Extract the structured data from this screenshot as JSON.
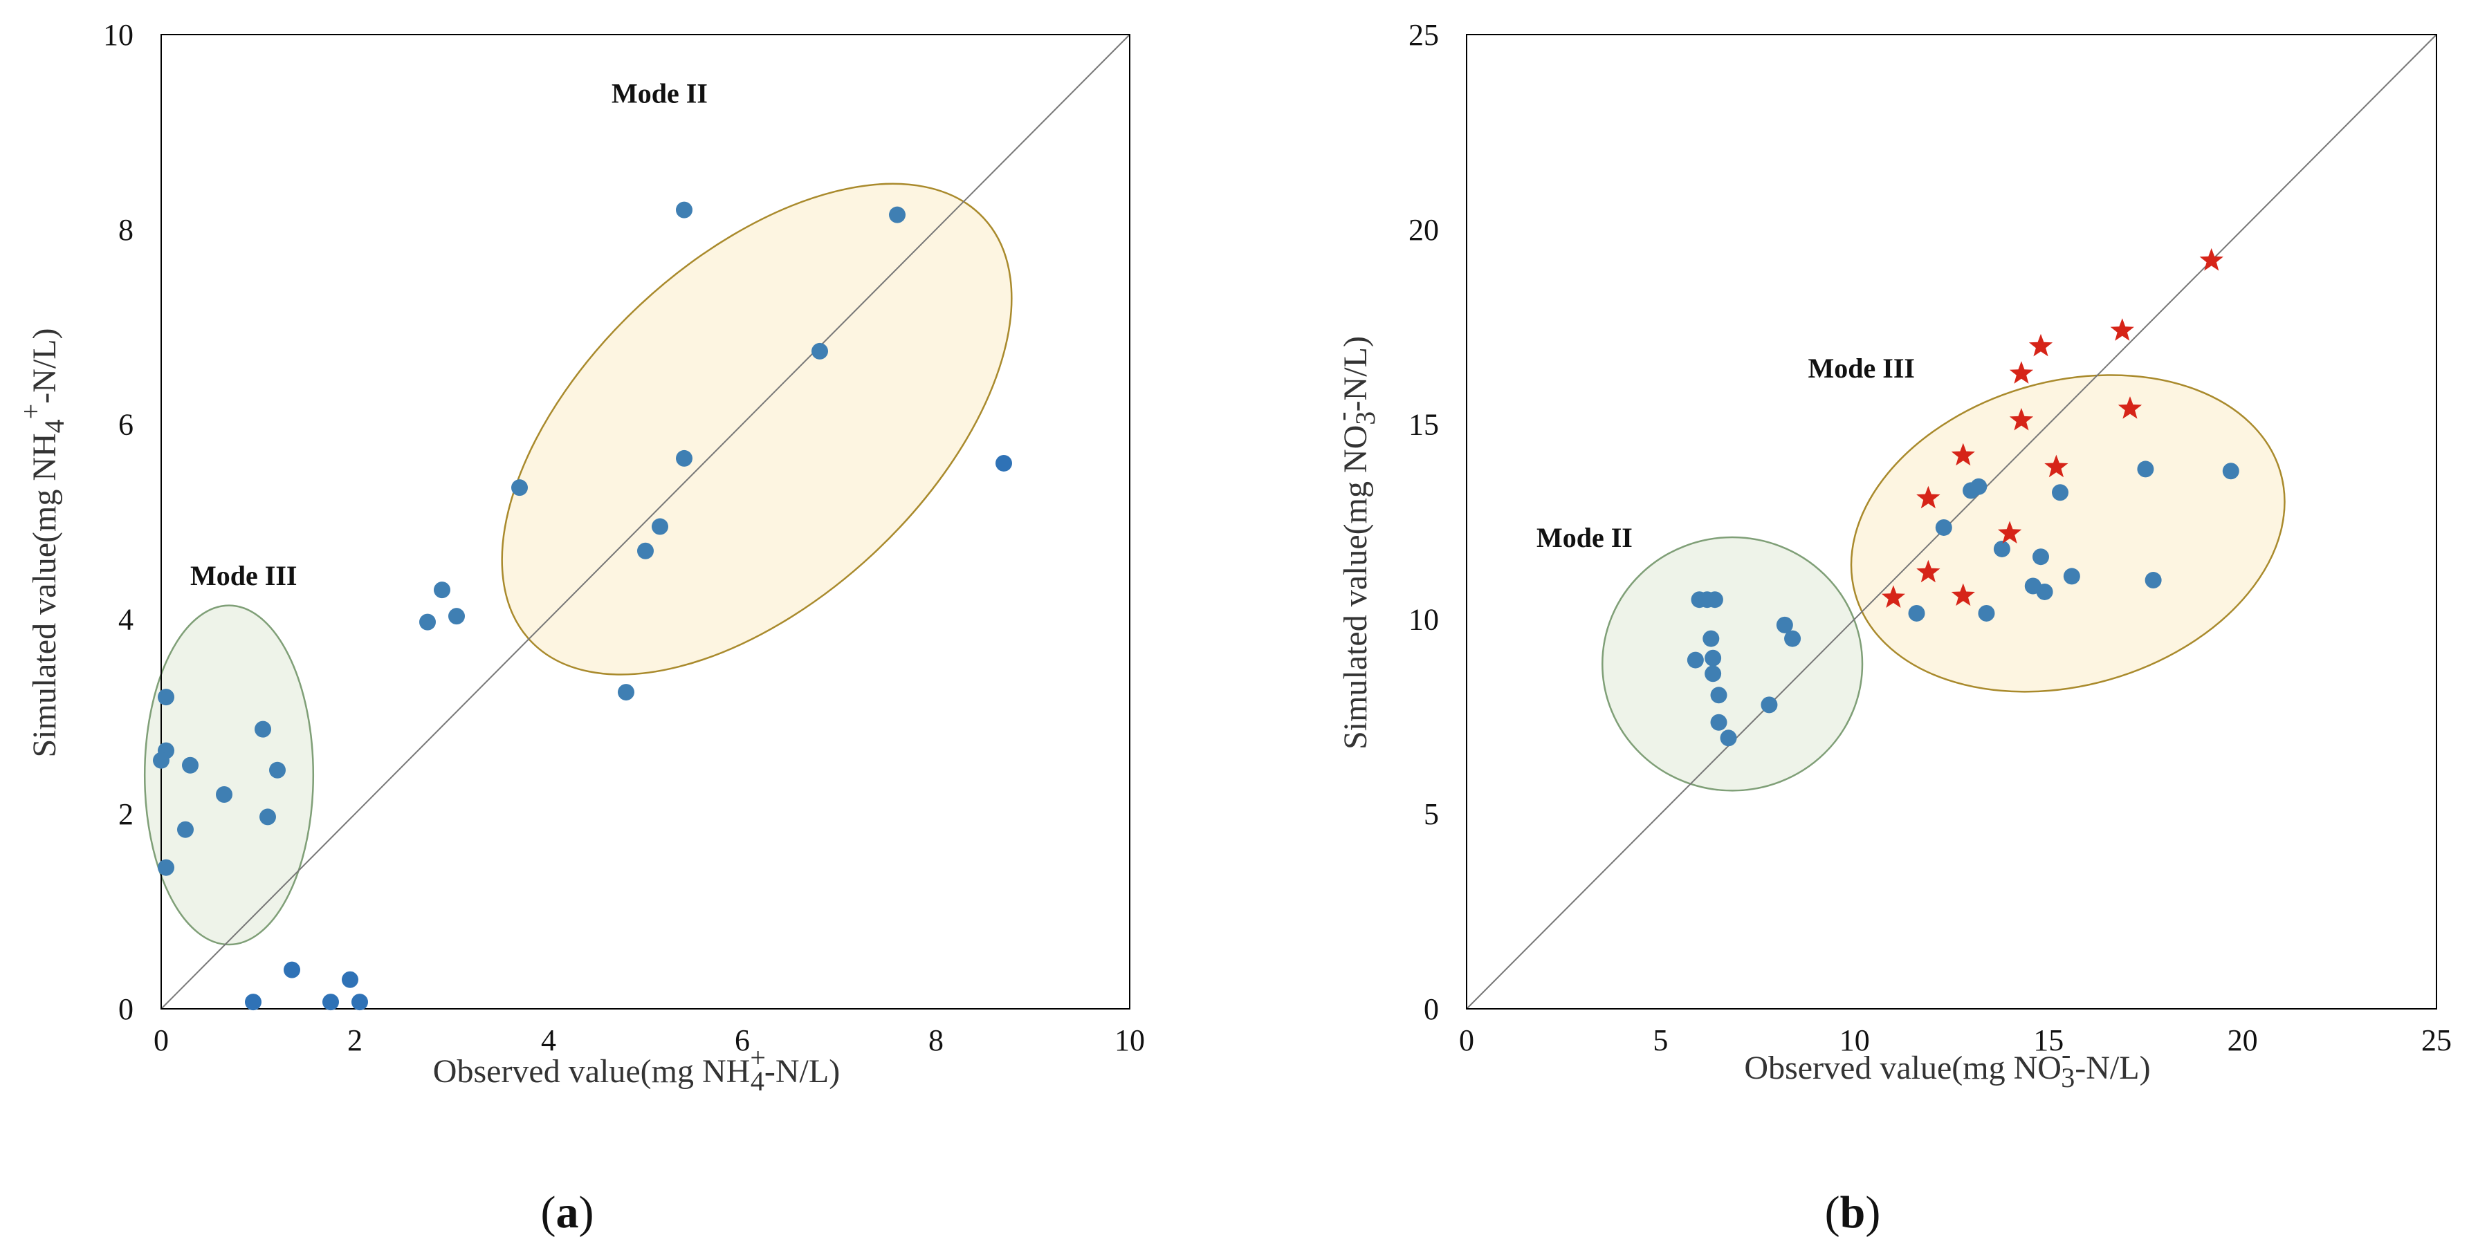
{
  "colors": {
    "point": "#3f7fb3",
    "point_outer": "#2f72b6",
    "star": "#d62418",
    "ellipse_yellow_fill": "#fdf5e1",
    "ellipse_yellow_stroke": "#a98a2c",
    "ellipse_green_fill": "#eef3e9",
    "ellipse_green_stroke": "#7f9f77",
    "identity_line": "#777777",
    "frame": "#000000"
  },
  "chart_data": [
    {
      "id": "a",
      "type": "scatter",
      "panel_label": {
        "open": "(",
        "letter": "a",
        "close": ")"
      },
      "xlim": [
        0,
        10
      ],
      "ylim": [
        0,
        10
      ],
      "xticks": [
        "0",
        "2",
        "4",
        "6",
        "8",
        "10"
      ],
      "yticks": [
        "0",
        "2",
        "4",
        "6",
        "8",
        "10"
      ],
      "xlabel": {
        "pre": "Observed value(mg NH",
        "sub": "4",
        "sup": "+",
        "post": "-N/L)"
      },
      "ylabel": {
        "pre": "Simulated value(mg NH",
        "sub": "4",
        "sup": "+",
        "post": "-N/L)"
      },
      "identity_line": true,
      "regions": [
        {
          "label": "Mode II",
          "style": "yellow",
          "cx": 6.15,
          "cy": 5.95,
          "rx": 3.2,
          "ry": 1.75,
          "rotate_deg": -43,
          "label_at": [
            4.65,
            9.3
          ]
        },
        {
          "label": "Mode III",
          "style": "green",
          "cx": 0.7,
          "cy": 2.4,
          "rx": 0.87,
          "ry": 1.74,
          "rotate_deg": 0,
          "label_at": [
            0.3,
            4.35
          ]
        }
      ],
      "series": [
        {
          "name": "points",
          "marker": "circle",
          "points": [
            [
              5.4,
              8.2
            ],
            [
              7.6,
              8.15
            ],
            [
              6.8,
              6.75
            ],
            [
              3.7,
              5.35
            ],
            [
              5.4,
              5.65
            ],
            [
              5.15,
              4.95
            ],
            [
              5.0,
              4.7
            ],
            [
              2.9,
              4.3
            ],
            [
              3.05,
              4.03
            ],
            [
              2.75,
              3.97
            ],
            [
              4.8,
              3.25
            ]
          ]
        },
        {
          "name": "points-mode-iii",
          "marker": "circle",
          "points": [
            [
              0.05,
              3.2
            ],
            [
              0.05,
              2.65
            ],
            [
              0.0,
              2.55
            ],
            [
              0.3,
              2.5
            ],
            [
              1.05,
              2.87
            ],
            [
              1.2,
              2.45
            ],
            [
              0.65,
              2.2
            ],
            [
              1.1,
              1.97
            ],
            [
              0.25,
              1.84
            ],
            [
              0.05,
              1.45
            ]
          ]
        },
        {
          "name": "points-outside",
          "marker": "circle",
          "points": [
            [
              8.7,
              5.6
            ],
            [
              1.35,
              0.4
            ],
            [
              1.95,
              0.3
            ],
            [
              0.95,
              0.07
            ],
            [
              1.75,
              0.07
            ],
            [
              2.05,
              0.07
            ]
          ]
        }
      ]
    },
    {
      "id": "b",
      "type": "scatter",
      "panel_label": {
        "open": "(",
        "letter": "b",
        "close": ")"
      },
      "xlim": [
        0,
        25
      ],
      "ylim": [
        0,
        25
      ],
      "xticks": [
        "0",
        "5",
        "10",
        "15",
        "20",
        "25"
      ],
      "yticks": [
        "0",
        "5",
        "10",
        "15",
        "20",
        "25"
      ],
      "xlabel": {
        "pre": "Observed value(mg NO",
        "sub": "3",
        "sup": "-",
        "post": "-N/L)"
      },
      "ylabel": {
        "pre": "Simulated value(mg NO",
        "sub": "3",
        "sup": "-",
        "post": "-N/L)"
      },
      "identity_line": true,
      "regions": [
        {
          "label": "Mode III",
          "style": "yellow",
          "cx": 15.5,
          "cy": 12.2,
          "rx": 5.7,
          "ry": 3.9,
          "rotate_deg": -16,
          "label_at": [
            8.8,
            16.2
          ]
        },
        {
          "label": "Mode II",
          "style": "green",
          "cx": 6.85,
          "cy": 8.85,
          "rx": 3.35,
          "ry": 3.25,
          "rotate_deg": 0,
          "label_at": [
            1.8,
            11.85
          ]
        }
      ],
      "series": [
        {
          "name": "points-mode-ii",
          "marker": "circle",
          "points": [
            [
              6.0,
              10.5
            ],
            [
              6.2,
              10.5
            ],
            [
              6.4,
              10.5
            ],
            [
              6.3,
              9.5
            ],
            [
              5.9,
              8.95
            ],
            [
              6.35,
              9.0
            ],
            [
              6.35,
              8.6
            ],
            [
              6.5,
              8.05
            ],
            [
              8.2,
              9.85
            ],
            [
              8.4,
              9.5
            ],
            [
              6.5,
              7.35
            ],
            [
              6.75,
              6.95
            ],
            [
              7.8,
              7.8
            ]
          ]
        },
        {
          "name": "points-mode-iii",
          "marker": "circle",
          "points": [
            [
              13.0,
              13.3
            ],
            [
              13.2,
              13.4
            ],
            [
              15.3,
              13.25
            ],
            [
              17.5,
              13.85
            ],
            [
              19.7,
              13.8
            ],
            [
              12.3,
              12.35
            ],
            [
              13.8,
              11.8
            ],
            [
              14.8,
              11.6
            ],
            [
              15.6,
              11.1
            ],
            [
              14.6,
              10.85
            ],
            [
              14.9,
              10.7
            ],
            [
              17.7,
              11.0
            ],
            [
              11.6,
              10.15
            ],
            [
              13.4,
              10.15
            ]
          ]
        },
        {
          "name": "stars",
          "marker": "star",
          "points": [
            [
              19.2,
              19.2
            ],
            [
              16.9,
              17.4
            ],
            [
              14.8,
              17.0
            ],
            [
              14.3,
              16.3
            ],
            [
              14.3,
              15.1
            ],
            [
              17.1,
              15.4
            ],
            [
              12.8,
              14.2
            ],
            [
              15.2,
              13.9
            ],
            [
              11.9,
              13.1
            ],
            [
              14.0,
              12.2
            ],
            [
              11.9,
              11.2
            ],
            [
              11.0,
              10.55
            ],
            [
              12.8,
              10.6
            ]
          ]
        }
      ]
    }
  ]
}
